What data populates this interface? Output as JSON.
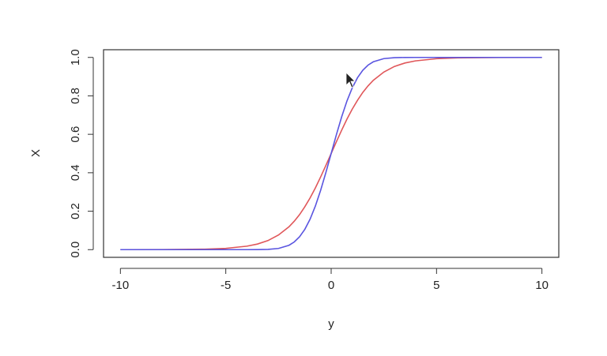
{
  "chart_data": {
    "type": "line",
    "xlabel": "y",
    "ylabel": "X",
    "x": [
      -10,
      -8,
      -6,
      -5,
      -4,
      -3.5,
      -3,
      -2.5,
      -2,
      -1.75,
      -1.5,
      -1.25,
      -1,
      -0.75,
      -0.5,
      -0.25,
      0,
      0.25,
      0.5,
      0.75,
      1,
      1.25,
      1.5,
      1.75,
      2,
      2.5,
      3,
      3.5,
      4,
      5,
      6,
      8,
      10
    ],
    "series": [
      {
        "color": "#e0575a",
        "values": [
          5e-05,
          0.00034,
          0.0025,
          0.0067,
          0.018,
          0.029,
          0.047,
          0.076,
          0.119,
          0.148,
          0.182,
          0.223,
          0.269,
          0.321,
          0.378,
          0.438,
          0.5,
          0.562,
          0.622,
          0.679,
          0.731,
          0.777,
          0.818,
          0.852,
          0.881,
          0.924,
          0.953,
          0.971,
          0.982,
          0.9933,
          0.9975,
          0.99966,
          0.99995
        ]
      },
      {
        "color": "#5a55e0",
        "values": [
          0,
          0,
          0,
          0,
          3e-05,
          0.0002,
          0.0013,
          0.0062,
          0.0228,
          0.0401,
          0.0668,
          0.1056,
          0.1587,
          0.2266,
          0.3085,
          0.4013,
          0.5,
          0.5987,
          0.6915,
          0.7734,
          0.8413,
          0.8944,
          0.9332,
          0.9599,
          0.9772,
          0.9938,
          0.9987,
          0.9998,
          0.99997,
          1,
          1,
          1,
          1
        ]
      }
    ],
    "xlim": [
      -10.8,
      10.8
    ],
    "ylim": [
      -0.04,
      1.04
    ],
    "xticks": [
      -10,
      -5,
      0,
      5,
      10
    ],
    "yticks": [
      {
        "value": 0,
        "label": "0.0"
      },
      {
        "value": 0.2,
        "label": "0.2"
      },
      {
        "value": 0.4,
        "label": "0.4"
      },
      {
        "value": 0.6,
        "label": "0.6"
      },
      {
        "value": 0.8,
        "label": "0.8"
      },
      {
        "value": 1,
        "label": "1.0"
      }
    ]
  }
}
